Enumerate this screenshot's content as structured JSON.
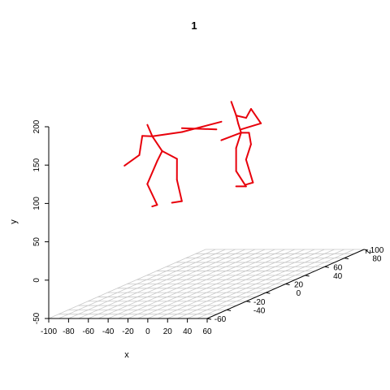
{
  "chart_data": {
    "type": "scatter3d",
    "title": "1",
    "xlabel": "x",
    "ylabel": "y",
    "zlabel": "z",
    "xlim": [
      -100,
      60
    ],
    "ylim": [
      -50,
      200
    ],
    "zlim": [
      -60,
      100
    ],
    "x_ticks": [
      "-100",
      "-80",
      "-60",
      "-40",
      "-20",
      "0",
      "20",
      "40",
      "60"
    ],
    "y_ticks": [
      "-50",
      "0",
      "50",
      "100",
      "150",
      "200"
    ],
    "z_ticks": [
      "-60",
      "-40",
      "-20",
      "0",
      "20",
      "40",
      "60",
      "80",
      "100"
    ],
    "grid": "floor",
    "line_color": "#e8000b",
    "segments": [
      [
        [
          -40,
          180,
          -20
        ],
        [
          -35,
          165,
          -20
        ]
      ],
      [
        [
          -35,
          165,
          -20
        ],
        [
          -55,
          160,
          -10
        ]
      ],
      [
        [
          -55,
          160,
          -10
        ],
        [
          -58,
          135,
          -10
        ]
      ],
      [
        [
          -58,
          135,
          -10
        ],
        [
          -75,
          120,
          -8
        ]
      ],
      [
        [
          -35,
          165,
          -20
        ],
        [
          -15,
          165,
          -10
        ]
      ],
      [
        [
          -15,
          165,
          -10
        ],
        [
          10,
          170,
          5
        ]
      ],
      [
        [
          -15,
          170,
          -10
        ],
        [
          5,
          160,
          5
        ]
      ],
      [
        [
          -35,
          165,
          -20
        ],
        [
          -30,
          143,
          -15
        ]
      ],
      [
        [
          -30,
          143,
          -15
        ],
        [
          -20,
          130,
          -10
        ]
      ],
      [
        [
          -30,
          143,
          -15
        ],
        [
          -35,
          130,
          -15
        ]
      ],
      [
        [
          -35,
          130,
          -15
        ],
        [
          -45,
          100,
          -15
        ]
      ],
      [
        [
          -45,
          100,
          -15
        ],
        [
          -40,
          70,
          -10
        ]
      ],
      [
        [
          -40,
          70,
          -10
        ],
        [
          -45,
          68,
          -10
        ]
      ],
      [
        [
          -20,
          130,
          -10
        ],
        [
          -25,
          100,
          -5
        ]
      ],
      [
        [
          -25,
          100,
          -5
        ],
        [
          -20,
          72,
          -5
        ]
      ],
      [
        [
          -20,
          72,
          -5
        ],
        [
          -30,
          70,
          -5
        ]
      ],
      [
        [
          20,
          196,
          5
        ],
        [
          25,
          178,
          5
        ]
      ],
      [
        [
          25,
          178,
          5
        ],
        [
          22,
          165,
          10
        ]
      ],
      [
        [
          22,
          165,
          10
        ],
        [
          20,
          150,
          15
        ]
      ],
      [
        [
          20,
          150,
          15
        ],
        [
          5,
          143,
          10
        ]
      ],
      [
        [
          25,
          178,
          5
        ],
        [
          35,
          175,
          5
        ]
      ],
      [
        [
          35,
          175,
          5
        ],
        [
          37,
          185,
          8
        ]
      ],
      [
        [
          37,
          185,
          8
        ],
        [
          45,
          165,
          10
        ]
      ],
      [
        [
          45,
          165,
          10
        ],
        [
          30,
          160,
          5
        ]
      ],
      [
        [
          20,
          150,
          15
        ],
        [
          28,
          150,
          15
        ]
      ],
      [
        [
          28,
          150,
          15
        ],
        [
          30,
          135,
          15
        ]
      ],
      [
        [
          30,
          135,
          15
        ],
        [
          25,
          115,
          15
        ]
      ],
      [
        [
          25,
          115,
          15
        ],
        [
          32,
          85,
          15
        ]
      ],
      [
        [
          32,
          85,
          15
        ],
        [
          24,
          82,
          15
        ]
      ],
      [
        [
          20,
          150,
          15
        ],
        [
          15,
          130,
          15
        ]
      ],
      [
        [
          15,
          130,
          15
        ],
        [
          15,
          100,
          15
        ]
      ],
      [
        [
          15,
          100,
          15
        ],
        [
          25,
          80,
          15
        ]
      ],
      [
        [
          25,
          80,
          15
        ],
        [
          15,
          80,
          15
        ]
      ]
    ]
  }
}
